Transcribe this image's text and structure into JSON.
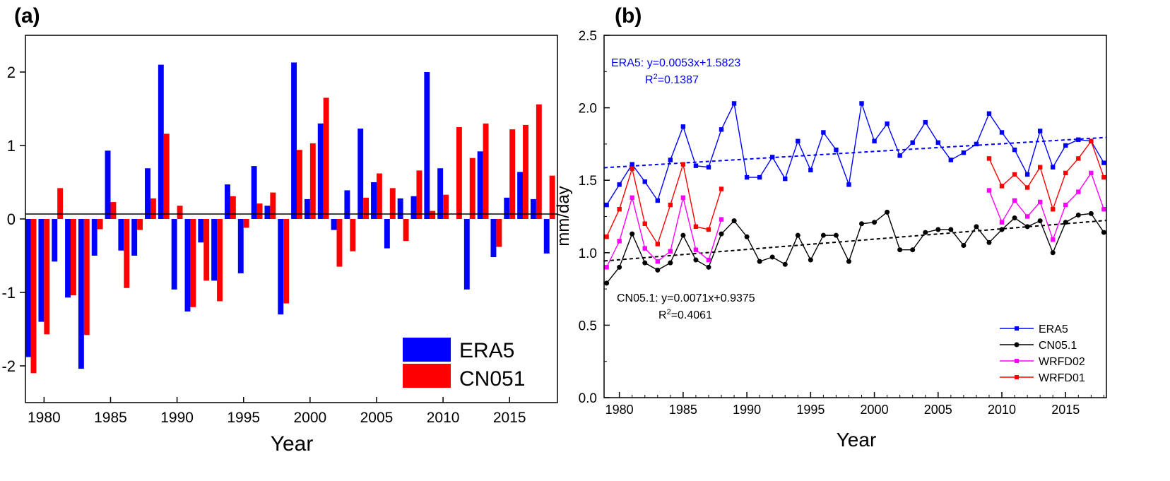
{
  "panels": {
    "a_label": "(a)",
    "b_label": "(b)"
  },
  "chart_data": [
    {
      "type": "bar",
      "panel": "(a)",
      "xlabel": "Year",
      "ylabel": "",
      "x": [
        1979,
        1980,
        1981,
        1982,
        1983,
        1984,
        1985,
        1986,
        1987,
        1988,
        1989,
        1990,
        1991,
        1992,
        1993,
        1994,
        1995,
        1996,
        1997,
        1998,
        1999,
        2000,
        2001,
        2002,
        2003,
        2004,
        2005,
        2006,
        2007,
        2008,
        2009,
        2010,
        2011,
        2012,
        2013,
        2014,
        2015,
        2016,
        2017,
        2018
      ],
      "xlim": [
        1978.6,
        2018.6
      ],
      "ylim": [
        -2.5,
        2.5
      ],
      "xticks": [
        1980,
        1985,
        1990,
        1995,
        2000,
        2005,
        2010,
        2015
      ],
      "yticks": [
        -2,
        -1,
        0,
        1,
        2
      ],
      "legend_position": "bottom-right",
      "series": [
        {
          "name": "ERA5",
          "color": "#0000ff",
          "values": [
            -1.88,
            -1.4,
            -0.58,
            -1.07,
            -2.04,
            -0.5,
            0.93,
            -0.43,
            -0.5,
            0.69,
            2.1,
            -0.96,
            -1.26,
            -0.32,
            -0.84,
            0.47,
            -0.74,
            0.72,
            0.18,
            -1.3,
            2.13,
            0.27,
            1.3,
            -0.15,
            0.39,
            1.23,
            0.5,
            -0.4,
            0.28,
            0.31,
            2.0,
            0.69,
            0.0,
            -0.96,
            0.92,
            -0.52,
            0.29,
            0.64,
            0.27,
            -0.47
          ]
        },
        {
          "name": "CN051",
          "color": "#ff0000",
          "values": [
            -2.1,
            -1.57,
            0.42,
            -1.04,
            -1.58,
            -0.14,
            0.23,
            -0.94,
            -0.15,
            0.28,
            1.16,
            0.18,
            -1.2,
            -0.84,
            -1.12,
            0.31,
            -0.12,
            0.21,
            0.36,
            -1.15,
            0.94,
            1.03,
            1.65,
            -0.65,
            -0.44,
            0.29,
            0.62,
            0.42,
            -0.3,
            0.66,
            0.11,
            0.33,
            1.25,
            0.83,
            1.3,
            -0.38,
            1.22,
            1.28,
            1.56,
            0.59
          ]
        }
      ]
    },
    {
      "type": "line",
      "panel": "(b)",
      "xlabel": "Year",
      "ylabel": "mm/day",
      "xlim": [
        1978.8,
        2018.2
      ],
      "ylim": [
        0.0,
        2.5
      ],
      "xticks": [
        1980,
        1985,
        1990,
        1995,
        2000,
        2005,
        2010,
        2015
      ],
      "yticks": [
        0.0,
        0.5,
        1.0,
        1.5,
        2.0,
        2.5
      ],
      "ytick_labels": [
        "0.0",
        "0.5",
        "1.0",
        "1.5",
        "2.0",
        "2.5"
      ],
      "legend_position": "bottom-right",
      "series": [
        {
          "name": "ERA5",
          "color": "#0000ff",
          "marker": "square",
          "x": [
            1979,
            1980,
            1981,
            1982,
            1983,
            1984,
            1985,
            1986,
            1987,
            1988,
            1989,
            1990,
            1991,
            1992,
            1993,
            1994,
            1995,
            1996,
            1997,
            1998,
            1999,
            2000,
            2001,
            2002,
            2003,
            2004,
            2005,
            2006,
            2007,
            2008,
            2009,
            2010,
            2011,
            2012,
            2013,
            2014,
            2015,
            2016,
            2017,
            2018
          ],
          "values": [
            1.33,
            1.47,
            1.61,
            1.49,
            1.36,
            1.64,
            1.87,
            1.6,
            1.59,
            1.85,
            2.03,
            1.52,
            1.52,
            1.66,
            1.51,
            1.77,
            1.57,
            1.83,
            1.71,
            1.47,
            2.03,
            1.77,
            1.89,
            1.67,
            1.76,
            1.9,
            1.76,
            1.64,
            1.69,
            1.75,
            1.96,
            1.83,
            1.71,
            1.54,
            1.84,
            1.59,
            1.74,
            1.78,
            1.77,
            1.62
          ]
        },
        {
          "name": "CN05.1",
          "color": "#000000",
          "marker": "circle",
          "x": [
            1979,
            1980,
            1981,
            1982,
            1983,
            1984,
            1985,
            1986,
            1987,
            1988,
            1989,
            1990,
            1991,
            1992,
            1993,
            1994,
            1995,
            1996,
            1997,
            1998,
            1999,
            2000,
            2001,
            2002,
            2003,
            2004,
            2005,
            2006,
            2007,
            2008,
            2009,
            2010,
            2011,
            2012,
            2013,
            2014,
            2015,
            2016,
            2017,
            2018
          ],
          "values": [
            0.79,
            0.9,
            1.13,
            0.93,
            0.88,
            0.93,
            1.12,
            0.95,
            0.9,
            1.13,
            1.22,
            1.11,
            0.94,
            0.97,
            0.92,
            1.12,
            0.95,
            1.12,
            1.12,
            0.94,
            1.2,
            1.21,
            1.28,
            1.02,
            1.02,
            1.14,
            1.16,
            1.16,
            1.05,
            1.18,
            1.07,
            1.16,
            1.24,
            1.18,
            1.22,
            1.0,
            1.21,
            1.26,
            1.27,
            1.14
          ]
        },
        {
          "name": "WRFD02",
          "color": "#ff00ff",
          "marker": "square",
          "x": [
            1979,
            1980,
            1981,
            1982,
            1983,
            1984,
            1985,
            1986,
            1987,
            1988,
            2009,
            2010,
            2011,
            2012,
            2013,
            2014,
            2015,
            2016,
            2017,
            2018
          ],
          "values": [
            0.9,
            1.08,
            1.38,
            1.03,
            0.94,
            1.01,
            1.38,
            1.02,
            0.95,
            1.23,
            1.43,
            1.21,
            1.36,
            1.25,
            1.35,
            1.09,
            1.33,
            1.42,
            1.55,
            1.3
          ]
        },
        {
          "name": "WRFD01",
          "color": "#ff0000",
          "marker": "square",
          "x": [
            1979,
            1980,
            1981,
            1982,
            1983,
            1984,
            1985,
            1986,
            1987,
            1988,
            2009,
            2010,
            2011,
            2012,
            2013,
            2014,
            2015,
            2016,
            2017,
            2018
          ],
          "values": [
            1.11,
            1.3,
            1.58,
            1.2,
            1.06,
            1.33,
            1.61,
            1.18,
            1.16,
            1.44,
            1.65,
            1.46,
            1.54,
            1.45,
            1.59,
            1.3,
            1.55,
            1.65,
            1.77,
            1.52
          ]
        }
      ],
      "trendlines": [
        {
          "series": "ERA5",
          "color": "#0000ff",
          "slope": 0.0053,
          "intercept": 1.5823,
          "equation": "ERA5: y=0.0053x+1.5823",
          "r2_prefix": "R",
          "r2_sup": "2",
          "r2_value": "=0.1387"
        },
        {
          "series": "CN05.1",
          "color": "#000000",
          "slope": 0.0071,
          "intercept": 0.9375,
          "equation": "CN05.1: y=0.0071x+0.9375",
          "r2_prefix": "R",
          "r2_sup": "2",
          "r2_value": "=0.4061"
        }
      ]
    }
  ]
}
